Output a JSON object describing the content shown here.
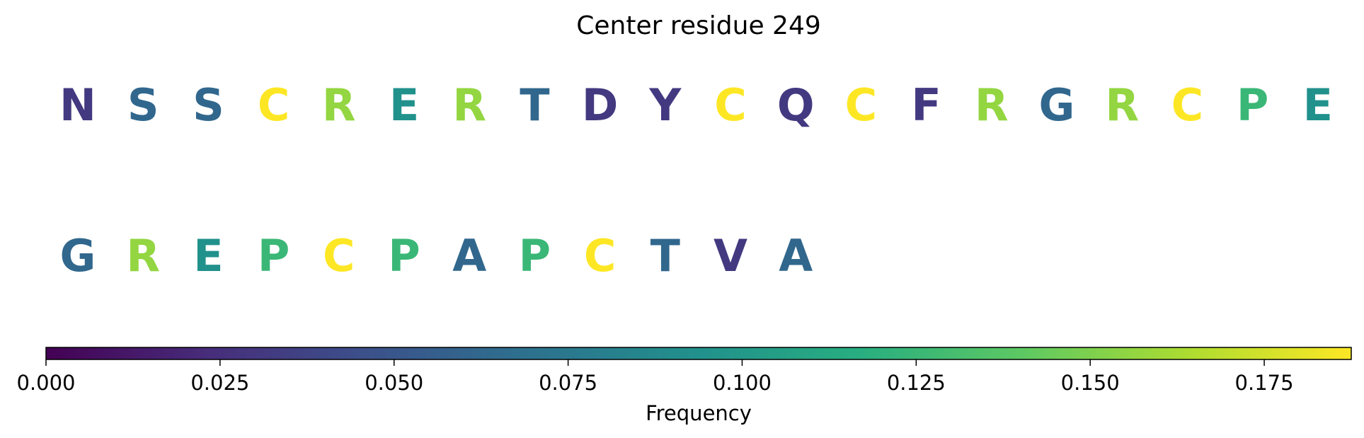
{
  "chart_data": {
    "type": "heatmap",
    "title": "Center residue 249",
    "colorbar": {
      "label": "Frequency",
      "range": [
        0.0,
        0.1875
      ],
      "colormap": "viridis",
      "ticks": [
        "0.000",
        "0.025",
        "0.050",
        "0.075",
        "0.100",
        "0.125",
        "0.150",
        "0.175"
      ],
      "tick_values": [
        0.0,
        0.025,
        0.05,
        0.075,
        0.1,
        0.125,
        0.15,
        0.175
      ],
      "placement": "bottom"
    },
    "rows": [
      [
        {
          "residue": "N",
          "frequency": 0.03125
        },
        {
          "residue": "S",
          "frequency": 0.0625
        },
        {
          "residue": "S",
          "frequency": 0.0625
        },
        {
          "residue": "C",
          "frequency": 0.1875
        },
        {
          "residue": "R",
          "frequency": 0.15625
        },
        {
          "residue": "E",
          "frequency": 0.09375
        },
        {
          "residue": "R",
          "frequency": 0.15625
        },
        {
          "residue": "T",
          "frequency": 0.0625
        },
        {
          "residue": "D",
          "frequency": 0.03125
        },
        {
          "residue": "Y",
          "frequency": 0.03125
        },
        {
          "residue": "C",
          "frequency": 0.1875
        },
        {
          "residue": "Q",
          "frequency": 0.03125
        },
        {
          "residue": "C",
          "frequency": 0.1875
        },
        {
          "residue": "F",
          "frequency": 0.03125
        },
        {
          "residue": "R",
          "frequency": 0.15625
        },
        {
          "residue": "G",
          "frequency": 0.0625
        },
        {
          "residue": "R",
          "frequency": 0.15625
        },
        {
          "residue": "C",
          "frequency": 0.1875
        },
        {
          "residue": "P",
          "frequency": 0.125
        },
        {
          "residue": "E",
          "frequency": 0.09375
        }
      ],
      [
        {
          "residue": "G",
          "frequency": 0.0625
        },
        {
          "residue": "R",
          "frequency": 0.15625
        },
        {
          "residue": "E",
          "frequency": 0.09375
        },
        {
          "residue": "P",
          "frequency": 0.125
        },
        {
          "residue": "C",
          "frequency": 0.1875
        },
        {
          "residue": "P",
          "frequency": 0.125
        },
        {
          "residue": "A",
          "frequency": 0.0625
        },
        {
          "residue": "P",
          "frequency": 0.125
        },
        {
          "residue": "C",
          "frequency": 0.1875
        },
        {
          "residue": "T",
          "frequency": 0.0625
        },
        {
          "residue": "V",
          "frequency": 0.03125
        },
        {
          "residue": "A",
          "frequency": 0.0625
        }
      ]
    ]
  }
}
